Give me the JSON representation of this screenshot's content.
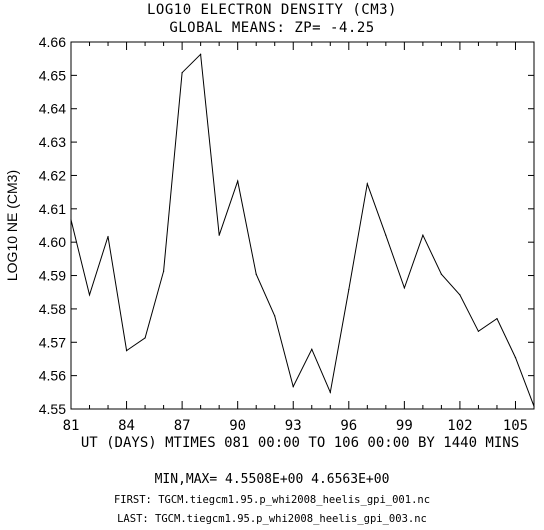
{
  "chart_data": {
    "type": "line",
    "title": "LOG10 ELECTRON DENSITY (CM3)",
    "subtitle": "GLOBAL MEANS: ZP= -4.25",
    "ylabel": "LOG10 NE (CM3)",
    "xlabel": "UT (DAYS) MTIMES 081 00:00 TO 106 00:00 BY 1440 MINS",
    "xlim": [
      81,
      106
    ],
    "ylim": [
      4.55,
      4.66
    ],
    "x_ticks": [
      81,
      84,
      87,
      90,
      93,
      96,
      99,
      102,
      105
    ],
    "x_tick_labels": [
      "81",
      "84",
      "87",
      "90",
      "93",
      "96",
      "99",
      "102",
      "105"
    ],
    "y_ticks": [
      4.55,
      4.56,
      4.57,
      4.58,
      4.59,
      4.6,
      4.61,
      4.62,
      4.63,
      4.64,
      4.65,
      4.66
    ],
    "y_tick_labels": [
      "4.55",
      "4.56",
      "4.57",
      "4.58",
      "4.59",
      "4.60",
      "4.61",
      "4.62",
      "4.63",
      "4.64",
      "4.65",
      "4.66"
    ],
    "grid": false,
    "series": [
      {
        "x": [
          81,
          82,
          83,
          84,
          85,
          86,
          87,
          88,
          89,
          90,
          91,
          92,
          93,
          94,
          95,
          96,
          97,
          98,
          99,
          100,
          101,
          102,
          103,
          104,
          105,
          106
        ],
        "values": [
          4.6067,
          4.5842,
          4.6017,
          4.5675,
          4.5713,
          4.5913,
          4.6508,
          4.6563,
          4.6021,
          4.6183,
          4.5904,
          4.5779,
          4.5567,
          4.5679,
          4.555,
          4.5858,
          4.6175,
          4.6021,
          4.5863,
          4.6021,
          4.5904,
          4.5842,
          4.5733,
          4.5771,
          4.5654,
          4.5508
        ]
      }
    ]
  },
  "footer": {
    "minmax": "MIN,MAX=  4.5508E+00  4.6563E+00",
    "first": "FIRST: TGCM.tiegcm1.95.p_whi2008_heelis_gpi_001.nc",
    "last": "LAST:  TGCM.tiegcm1.95.p_whi2008_heelis_gpi_003.nc"
  }
}
